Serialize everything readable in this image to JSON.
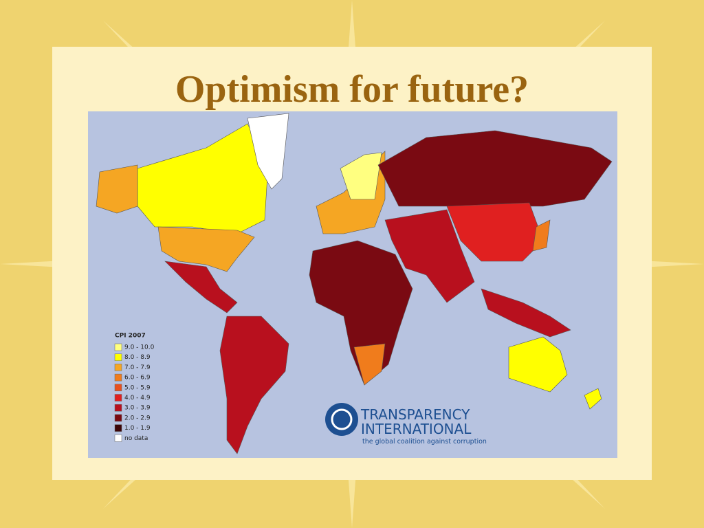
{
  "slide": {
    "title": "Optimism for future?",
    "map": {
      "legend": {
        "title": "CPI 2007",
        "items": [
          {
            "label": "9.0 - 10.0",
            "color": "#ffff80"
          },
          {
            "label": "8.0 - 8.9",
            "color": "#ffff00"
          },
          {
            "label": "7.0 - 7.9",
            "color": "#f5a623"
          },
          {
            "label": "6.0 - 6.9",
            "color": "#f07c1c"
          },
          {
            "label": "5.0 - 5.9",
            "color": "#e8501e"
          },
          {
            "label": "4.0 - 4.9",
            "color": "#e02020"
          },
          {
            "label": "3.0 - 3.9",
            "color": "#b8101e"
          },
          {
            "label": "2.0 - 2.9",
            "color": "#7a0a12"
          },
          {
            "label": "1.0 - 1.9",
            "color": "#3c0508"
          },
          {
            "label": "no data",
            "color": "#ffffff"
          }
        ]
      }
    },
    "logo": {
      "line1": "TRANSPARENCY",
      "line2": "INTERNATIONAL",
      "tagline": "the global coalition against corruption"
    }
  }
}
